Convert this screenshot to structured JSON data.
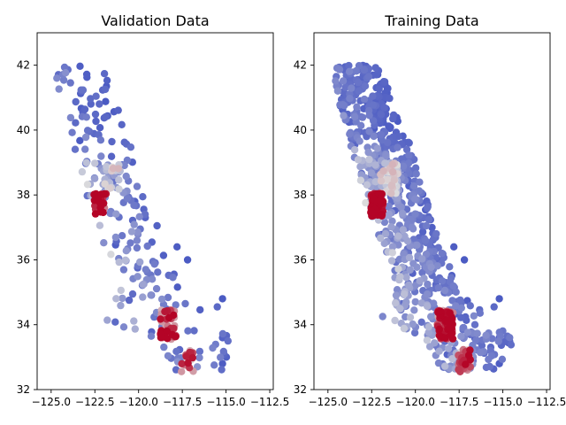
{
  "chart_data": [
    {
      "type": "scatter",
      "title": "Validation Data",
      "xlabel": "",
      "ylabel": "",
      "xlim": [
        -125.8,
        -112.3
      ],
      "ylim": [
        32,
        43
      ],
      "xticks": [
        "−125.0",
        "−122.5",
        "−120.0",
        "−117.5",
        "−115.0",
        "−112.5"
      ],
      "yticks": [
        "32",
        "34",
        "36",
        "38",
        "40",
        "42"
      ],
      "grid": false,
      "colormap": "coolwarm",
      "n_points": 330,
      "seed": 7
    },
    {
      "type": "scatter",
      "title": "Training Data",
      "xlabel": "",
      "ylabel": "",
      "xlim": [
        -125.8,
        -112.3
      ],
      "ylim": [
        32,
        43
      ],
      "xticks": [
        "−125.0",
        "−122.5",
        "−120.0",
        "−117.5",
        "−115.0",
        "−112.5"
      ],
      "yticks": [
        "32",
        "34",
        "36",
        "38",
        "40",
        "42"
      ],
      "grid": false,
      "colormap": "coolwarm",
      "n_points": 1100,
      "seed": 13
    }
  ],
  "colors": {
    "coolwarm_low": "#3b4cc0",
    "coolwarm_mid": "#dddddd",
    "coolwarm_high": "#b40426"
  }
}
